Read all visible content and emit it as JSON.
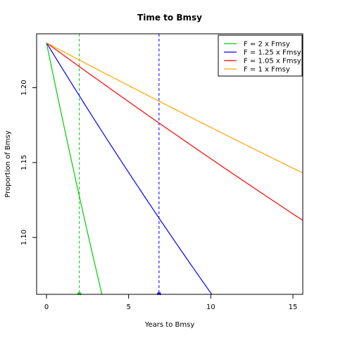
{
  "chart_data": {
    "type": "line",
    "title": "Time to Bmsy",
    "xlabel": "Years to Bmsy",
    "ylabel": "Proportion of Bmsy",
    "xlim": [
      -0.6,
      15.6
    ],
    "ylim": [
      1.062,
      1.236
    ],
    "xticks": [
      0,
      5,
      10,
      15
    ],
    "xtick_labels": [
      "0",
      "5",
      "10",
      "15"
    ],
    "yticks": [
      1.1,
      1.15,
      1.2
    ],
    "ytick_labels": [
      "1.10",
      "1.15",
      "1.20"
    ],
    "legend_position": "top-right",
    "grid": false,
    "start_value": 1.23,
    "series": [
      {
        "name": "F = 2 x Fmsy",
        "color": "#00cc00",
        "decay_rate": 0.0435,
        "vline": 2.0
      },
      {
        "name": "F = 1.25 x Fmsy",
        "color": "#0000ff",
        "decay_rate": 0.0146,
        "vline": 6.85
      },
      {
        "name": "F = 1.05 x Fmsy",
        "color": "#ff0000",
        "decay_rate": 0.0065,
        "vline": null
      },
      {
        "name": "F = 1 x Fmsy",
        "color": "#ffa500",
        "decay_rate": 0.0047,
        "vline": null
      }
    ]
  }
}
